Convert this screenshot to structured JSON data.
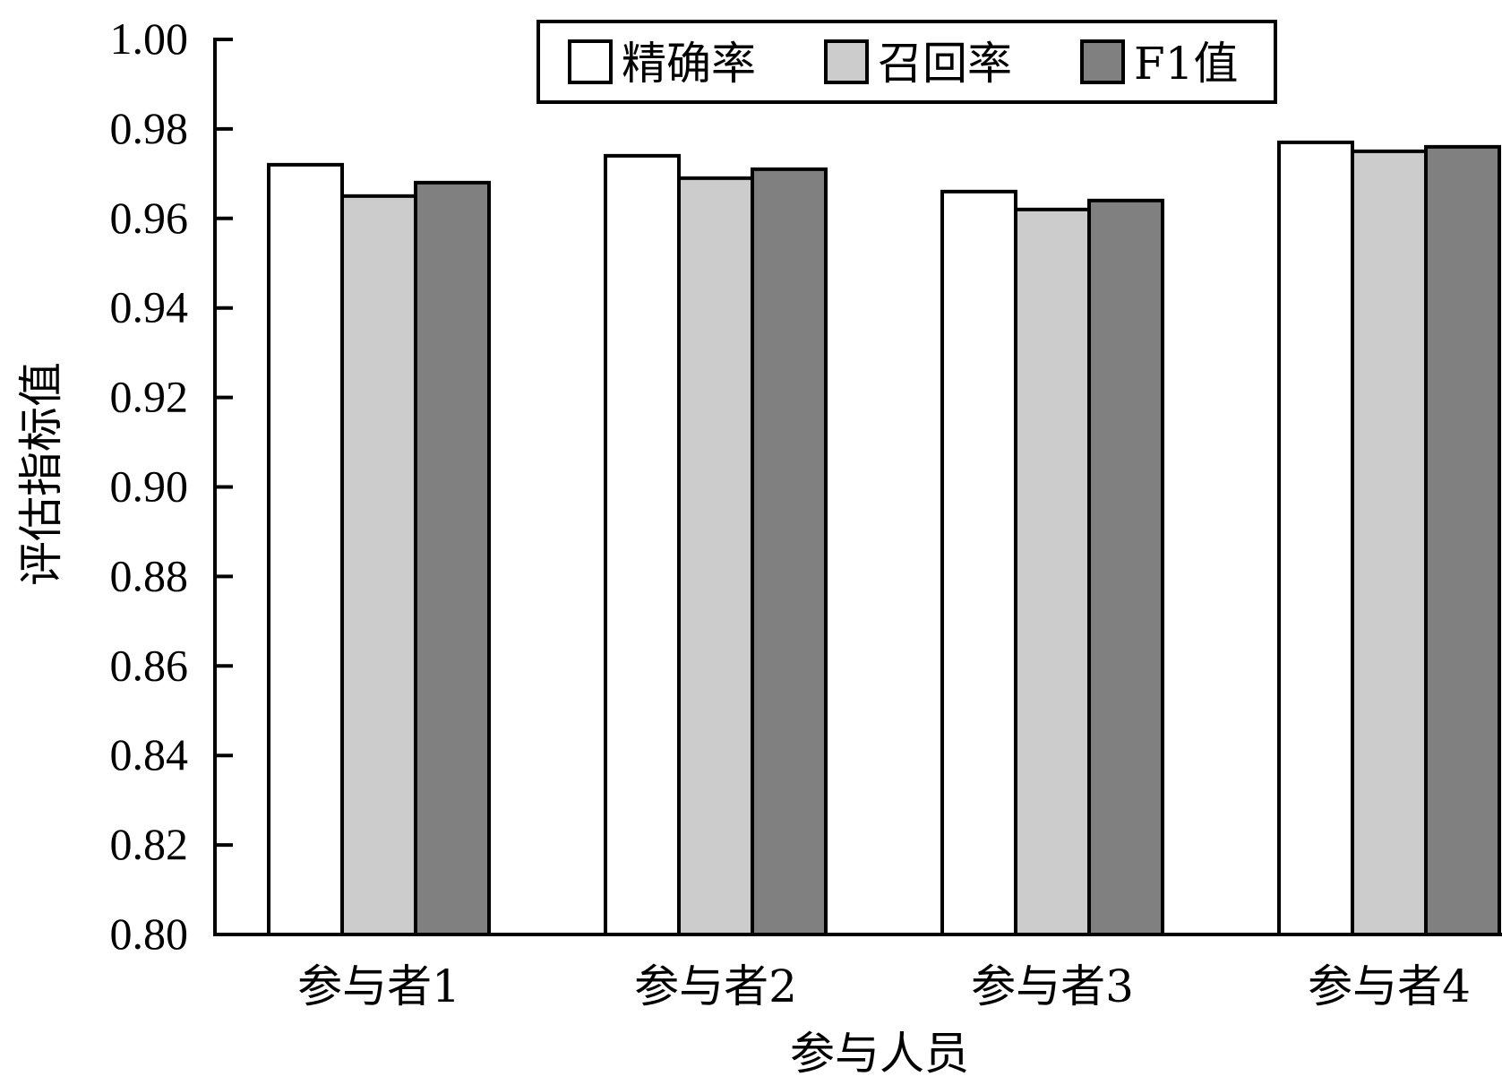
{
  "chart_data": {
    "type": "bar",
    "title": "",
    "xlabel": "参与人员",
    "ylabel": "评估指标值",
    "categories": [
      "参与者1",
      "参与者2",
      "参与者3",
      "参与者4"
    ],
    "series": [
      {
        "name": "精确率",
        "color": "#ffffff",
        "values": [
          0.972,
          0.974,
          0.966,
          0.977
        ]
      },
      {
        "name": "召回率",
        "color": "#cccccc",
        "values": [
          0.965,
          0.969,
          0.962,
          0.975
        ]
      },
      {
        "name": "F1值",
        "color": "#808080",
        "values": [
          0.968,
          0.971,
          0.964,
          0.976
        ]
      }
    ],
    "ylim": [
      0.8,
      1.0
    ],
    "yticks": [
      "0.80",
      "0.82",
      "0.84",
      "0.86",
      "0.88",
      "0.90",
      "0.92",
      "0.94",
      "0.96",
      "0.98",
      "1.00"
    ],
    "grid": false,
    "legend": "top-right"
  }
}
